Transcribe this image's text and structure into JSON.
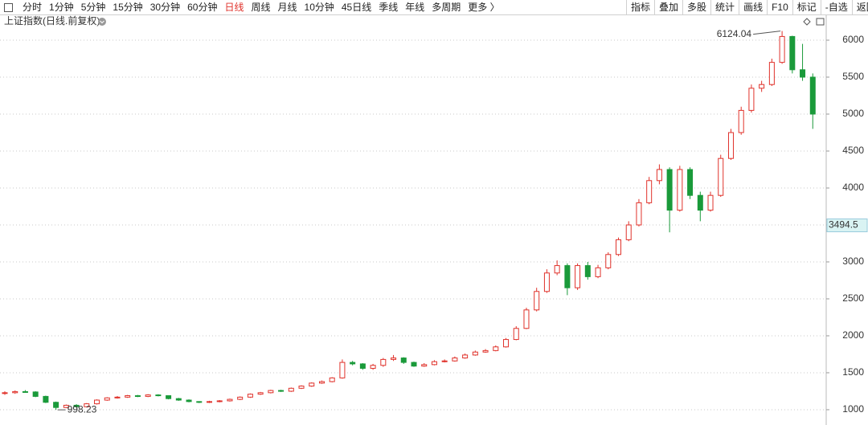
{
  "toolbar": {
    "periods": [
      "分时",
      "1分钟",
      "5分钟",
      "15分钟",
      "30分钟",
      "60分钟",
      "日线",
      "周线",
      "月线",
      "10分钟",
      "45日线",
      "季线",
      "年线",
      "多周期",
      "更多 〉"
    ],
    "active_index": 6,
    "active_color": "#e0322b",
    "buttons": [
      "指标",
      "叠加",
      "多股",
      "统计",
      "画线",
      "F10",
      "标记",
      "-自选",
      "返回"
    ]
  },
  "chart_data": {
    "type": "candlestick",
    "title": "上证指数(日线.前复权)",
    "up_color": "#e0322b",
    "down_color": "#1a9a3a",
    "open": [
      1220,
      1230,
      1245,
      1240,
      1180,
      1100,
      1030,
      1060,
      1040,
      1080,
      1130,
      1160,
      1170,
      1190,
      1180,
      1200,
      1190,
      1150,
      1130,
      1110,
      1100,
      1110,
      1120,
      1140,
      1170,
      1210,
      1230,
      1260,
      1250,
      1290,
      1320,
      1360,
      1380,
      1430,
      1640,
      1620,
      1560,
      1600,
      1680,
      1700,
      1640,
      1590,
      1610,
      1650,
      1660,
      1700,
      1740,
      1780,
      1800,
      1850,
      1950,
      2100,
      2350,
      2600,
      2850,
      2950,
      2650,
      2950,
      2800,
      2920,
      3100,
      3300,
      3500,
      3800,
      4100,
      4250,
      3700,
      4250,
      3900,
      3700,
      3900,
      4400,
      4750,
      5050,
      5350,
      5400,
      5700,
      6050,
      5600,
      5500
    ],
    "high": [
      1250,
      1260,
      1265,
      1250,
      1190,
      1110,
      1070,
      1075,
      1090,
      1140,
      1170,
      1185,
      1200,
      1200,
      1210,
      1210,
      1195,
      1160,
      1140,
      1115,
      1120,
      1130,
      1150,
      1180,
      1220,
      1240,
      1270,
      1270,
      1300,
      1330,
      1370,
      1395,
      1440,
      1680,
      1660,
      1630,
      1620,
      1700,
      1740,
      1710,
      1650,
      1630,
      1670,
      1680,
      1720,
      1760,
      1800,
      1820,
      1870,
      1970,
      2130,
      2380,
      2650,
      2900,
      3020,
      2980,
      2980,
      3000,
      2960,
      3130,
      3330,
      3550,
      3850,
      4150,
      4320,
      4280,
      4300,
      4280,
      3950,
      3950,
      4450,
      4800,
      5100,
      5400,
      5450,
      5750,
      6124.04,
      6060,
      5950,
      5550
    ],
    "low": [
      1200,
      1215,
      1230,
      1170,
      1090,
      998.23,
      1020,
      1030,
      1035,
      1070,
      1120,
      1150,
      1160,
      1170,
      1170,
      1180,
      1140,
      1120,
      1100,
      1090,
      1090,
      1100,
      1110,
      1130,
      1160,
      1200,
      1220,
      1240,
      1240,
      1280,
      1310,
      1350,
      1370,
      1420,
      1600,
      1540,
      1540,
      1580,
      1660,
      1620,
      1580,
      1580,
      1600,
      1640,
      1650,
      1690,
      1730,
      1770,
      1790,
      1840,
      1940,
      2090,
      2330,
      2580,
      2820,
      2550,
      2620,
      2760,
      2780,
      2900,
      3080,
      3280,
      3480,
      3780,
      4050,
      3400,
      3680,
      3850,
      3550,
      3680,
      3880,
      4380,
      4720,
      5020,
      5300,
      5380,
      5680,
      5550,
      5450,
      4800
    ],
    "close": [
      1230,
      1245,
      1240,
      1180,
      1100,
      1030,
      1060,
      1040,
      1080,
      1130,
      1160,
      1170,
      1190,
      1180,
      1200,
      1190,
      1150,
      1130,
      1110,
      1100,
      1110,
      1120,
      1140,
      1170,
      1210,
      1230,
      1260,
      1250,
      1290,
      1320,
      1360,
      1380,
      1430,
      1640,
      1620,
      1560,
      1600,
      1680,
      1700,
      1640,
      1590,
      1610,
      1650,
      1660,
      1700,
      1740,
      1780,
      1800,
      1850,
      1950,
      2100,
      2350,
      2600,
      2850,
      2950,
      2650,
      2950,
      2800,
      2920,
      3100,
      3300,
      3500,
      3800,
      4100,
      4250,
      3700,
      4250,
      3900,
      3700,
      3900,
      4400,
      4750,
      5050,
      5350,
      5400,
      5700,
      6050,
      5600,
      5500,
      5000
    ],
    "max_index": 76,
    "min_index": 5,
    "last_price": 3494.5,
    "ylim": [
      793,
      6348
    ],
    "yticks": [
      1000,
      1500,
      2000,
      2500,
      3000,
      3500,
      4000,
      4500,
      5000,
      5500,
      6000
    ],
    "grid": true
  }
}
